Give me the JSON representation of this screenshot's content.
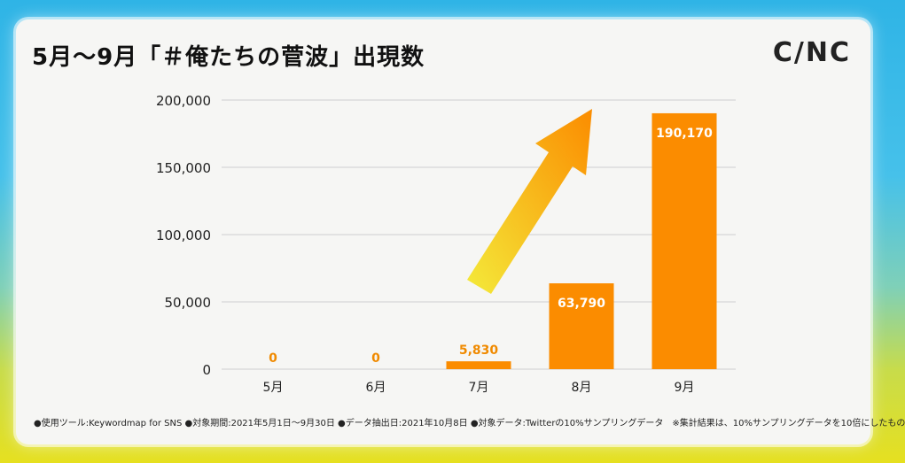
{
  "header": {
    "title": "5月〜9月「＃俺たちの菅波」出現数",
    "logo": "C/NC"
  },
  "footnote": "●使用ツール:Keywordmap for SNS ●対象期間:2021年5月1日〜9月30日 ●データ抽出日:2021年10月8日 ●対象データ:Twitterの10%サンプリングデータ　※集計結果は、10%サンプリングデータを10倍にしたもの",
  "colors": {
    "bar": "#fb8c00",
    "label_outside": "#f08a00",
    "label_inside": "#ffffff",
    "arrow_start": "#f4ea3a",
    "arrow_end": "#fb8c00",
    "grid": "#cfcfcf"
  },
  "chart_data": {
    "type": "bar",
    "categories": [
      "5月",
      "6月",
      "7月",
      "8月",
      "9月"
    ],
    "values": [
      0,
      0,
      5830,
      63790,
      190170
    ],
    "value_labels": [
      "0",
      "0",
      "5,830",
      "63,790",
      "190,170"
    ],
    "yticks": [
      0,
      50000,
      100000,
      150000,
      200000
    ],
    "ytick_labels": [
      "0",
      "50,000",
      "100,000",
      "150,000",
      "200,000"
    ],
    "ylim": [
      0,
      200000
    ],
    "grid": true,
    "legend": "none",
    "annotation": "upward-arrow"
  }
}
